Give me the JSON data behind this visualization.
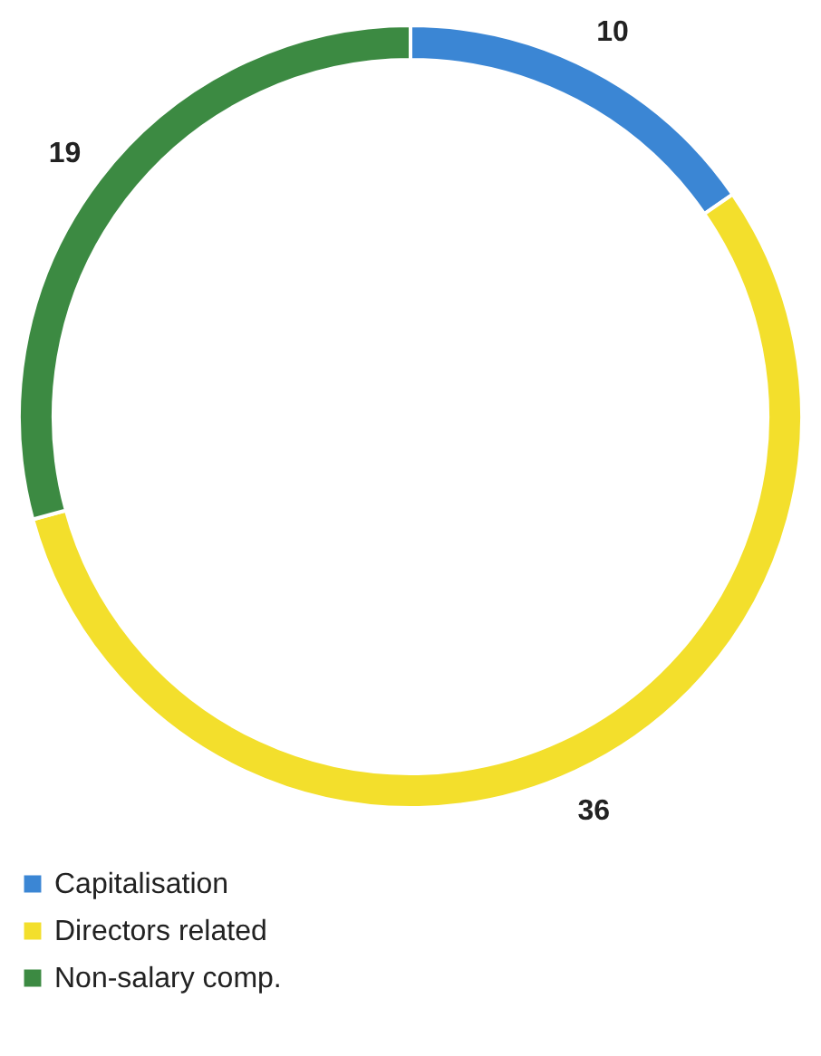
{
  "chart_data": {
    "type": "donut",
    "categories": [
      "Capitalisation",
      "Directors related",
      "Non-salary comp."
    ],
    "values": [
      10,
      36,
      19
    ],
    "colors": [
      "#3b86d4",
      "#f3df2c",
      "#3c8a42"
    ],
    "data_labels": true,
    "legend": "bottom left"
  }
}
